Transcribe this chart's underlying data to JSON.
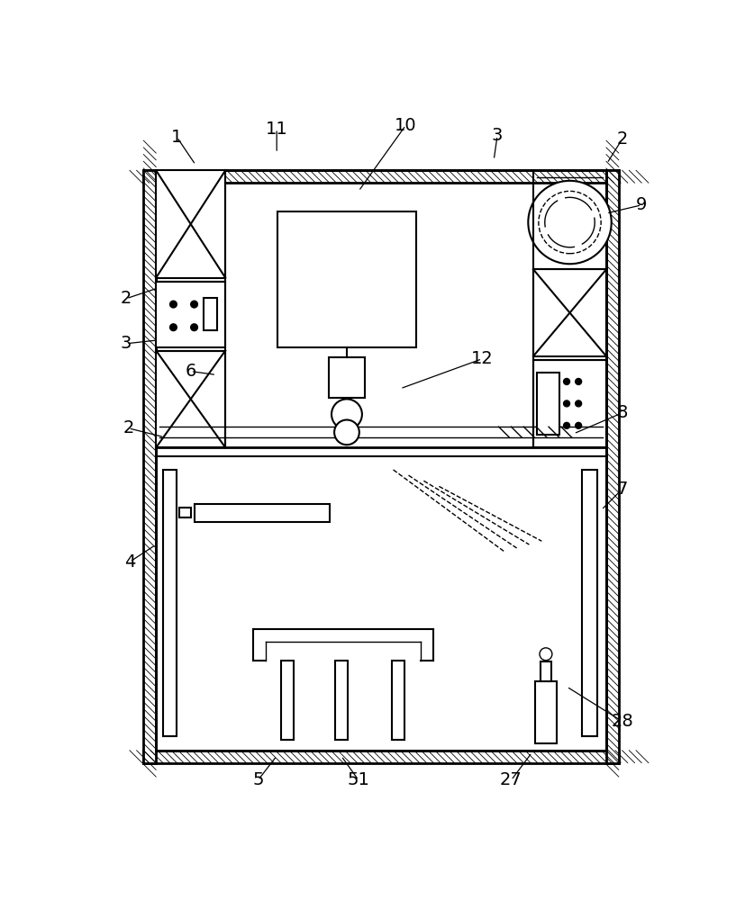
{
  "bg_color": "#ffffff",
  "line_color": "#000000",
  "fig_width": 8.27,
  "fig_height": 10.0
}
